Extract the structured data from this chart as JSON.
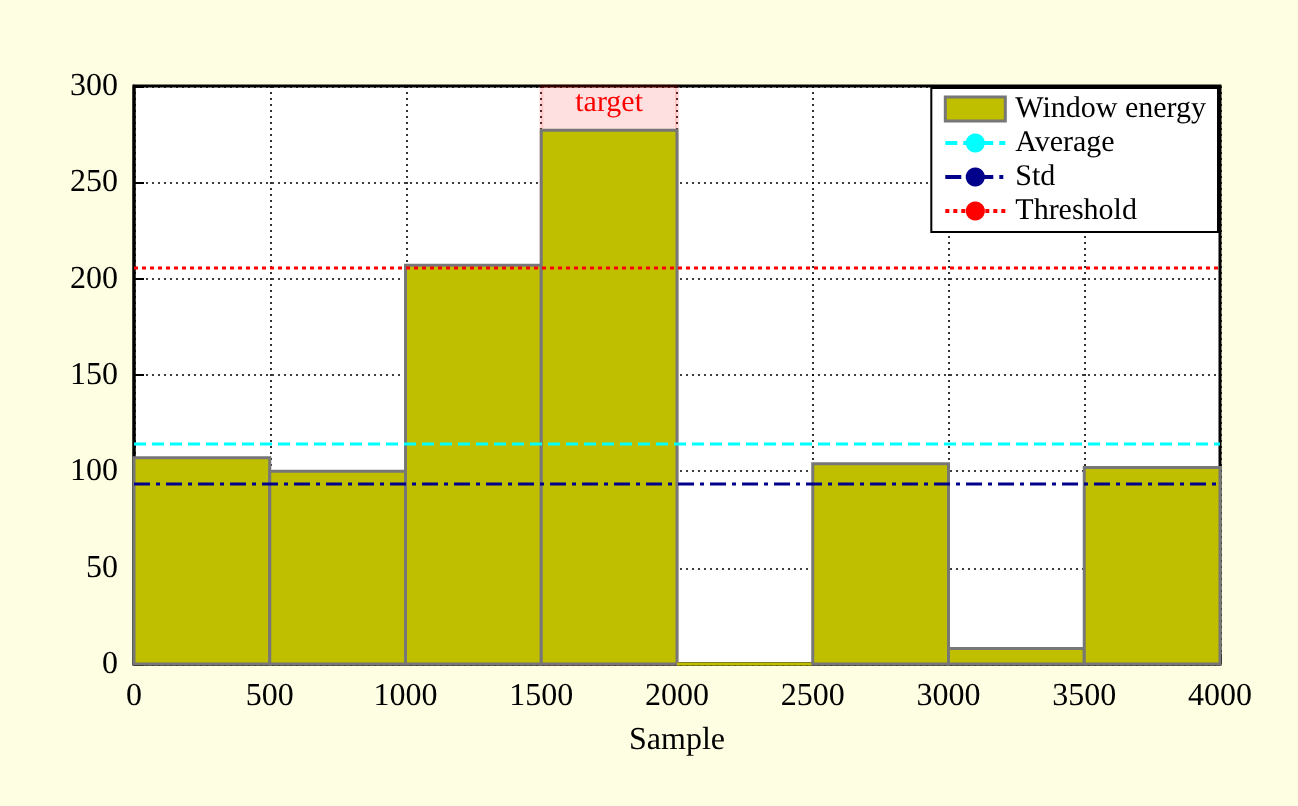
{
  "chart_data": {
    "type": "histogram",
    "xlabel": "Sample",
    "bins": [
      0,
      500,
      1000,
      1500,
      2000,
      2500,
      3000,
      3500,
      4000
    ],
    "series": [
      {
        "name": "Window energy",
        "color": "#bfbf00",
        "values": [
          107,
          100,
          207,
          277,
          0,
          104,
          8,
          102
        ]
      }
    ],
    "xlim": [
      0,
      4000
    ],
    "xticks": [
      0,
      500,
      1000,
      1500,
      2000,
      2500,
      3000,
      3500,
      4000
    ],
    "ylim": [
      0,
      300
    ],
    "yticks": [
      0,
      50,
      100,
      150,
      200,
      250,
      300
    ],
    "ref_lines": [
      {
        "axis": "y",
        "value": 114,
        "label": "Average",
        "color": "#00ffff",
        "line_style": "dashed"
      },
      {
        "axis": "y",
        "value": 94,
        "label": "Std",
        "color": "#00008b",
        "line_style": "dashdot"
      },
      {
        "axis": "y",
        "value": 206,
        "label": "Threshold",
        "color": "#ff0000",
        "line_style": "dotted"
      }
    ],
    "bands": [
      {
        "axis": "x",
        "from": 1500,
        "to": 2000,
        "label": "target",
        "color": "#ff0000"
      }
    ],
    "grid": true,
    "legend": "top right"
  }
}
